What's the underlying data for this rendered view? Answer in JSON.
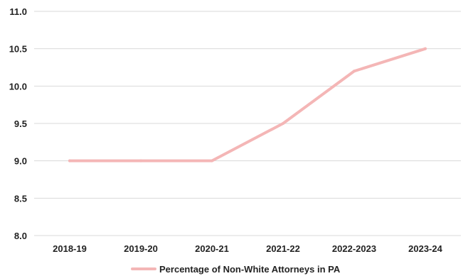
{
  "chart_data": {
    "type": "line",
    "categories": [
      "2018-19",
      "2019-20",
      "2020-21",
      "2021-22",
      "2022-2023",
      "2023-24"
    ],
    "series": [
      {
        "name": "Percentage of Non-White Attorneys in PA",
        "values": [
          9.0,
          9.0,
          9.0,
          9.5,
          10.2,
          10.5
        ],
        "color": "#f4b6b6"
      }
    ],
    "ylim": [
      8.0,
      11.0
    ],
    "yticks": [
      "8.0",
      "8.5",
      "9.0",
      "9.5",
      "10.0",
      "10.5",
      "11.0"
    ],
    "grid": true,
    "legend_position": "bottom"
  }
}
